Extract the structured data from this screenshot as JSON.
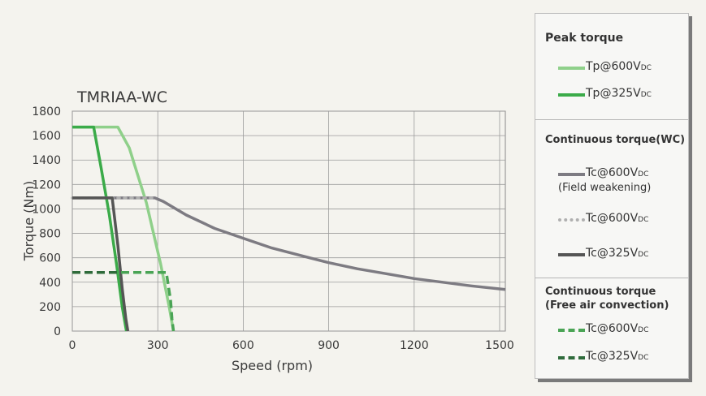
{
  "chart_data": {
    "type": "line",
    "title": "TMRIAA-WC",
    "xlabel": "Speed (rpm)",
    "ylabel": "Torque (Nm)",
    "xlim": [
      0,
      1520
    ],
    "ylim": [
      0,
      1800
    ],
    "xticks": [
      0,
      300,
      600,
      900,
      1200,
      1500
    ],
    "yticks": [
      0,
      200,
      400,
      600,
      800,
      1000,
      1200,
      1400,
      1600,
      1800
    ],
    "grid": true,
    "legend_placement": "right",
    "series": [
      {
        "name": "Tp@600VDC",
        "color": "#8fd08a",
        "style": "solid",
        "x": [
          0,
          160,
          200,
          260,
          310,
          340,
          355
        ],
        "y": [
          1670,
          1670,
          1500,
          1050,
          550,
          200,
          0
        ]
      },
      {
        "name": "Tp@325VDC",
        "color": "#3bab49",
        "style": "solid",
        "x": [
          0,
          75,
          100,
          130,
          155,
          175,
          190
        ],
        "y": [
          1670,
          1670,
          1350,
          950,
          550,
          200,
          0
        ]
      },
      {
        "name": "Tc@600VDC (Field weakening)",
        "color": "#7d7b82",
        "style": "solid",
        "x": [
          0,
          290,
          320,
          400,
          500,
          600,
          700,
          800,
          900,
          1000,
          1100,
          1200,
          1300,
          1400,
          1520
        ],
        "y": [
          1090,
          1090,
          1060,
          950,
          840,
          760,
          680,
          620,
          560,
          510,
          470,
          430,
          400,
          370,
          340
        ]
      },
      {
        "name": "Tc@600VDC",
        "color": "#b0b0b0",
        "style": "dotted",
        "x": [
          0,
          290
        ],
        "y": [
          1090,
          1090
        ]
      },
      {
        "name": "Tc@325VDC",
        "color": "#555555",
        "style": "solid",
        "x": [
          0,
          140,
          160,
          175,
          188,
          195
        ],
        "y": [
          1090,
          1090,
          700,
          350,
          100,
          0
        ]
      },
      {
        "name": "Tc@600VDC",
        "color": "#4aa455",
        "style": "dashed",
        "x": [
          0,
          330,
          345,
          350,
          355
        ],
        "y": [
          480,
          480,
          250,
          100,
          0
        ]
      },
      {
        "name": "Tc@325VDC",
        "color": "#2f6b3b",
        "style": "dashed",
        "x": [
          0,
          170
        ],
        "y": [
          480,
          480
        ]
      }
    ]
  },
  "legend": {
    "peak_title": "Peak torque",
    "cont_wc_title": "Continuous torque(WC)",
    "cont_fa_title_1": "Continuous torque",
    "cont_fa_title_2": "(Free air convection)",
    "field_weakening_note": "(Field weakening)",
    "items": [
      {
        "base": "Tp@600V",
        "sub": "DC",
        "color": "#8fd08a",
        "style": "solid"
      },
      {
        "base": "Tp@325V",
        "sub": "DC",
        "color": "#3bab49",
        "style": "solid"
      },
      {
        "base": "Tc@600V",
        "sub": "DC",
        "color": "#7d7b82",
        "style": "solid"
      },
      {
        "base": "Tc@600V",
        "sub": "DC",
        "color": "#b0b0b0",
        "style": "dotted"
      },
      {
        "base": "Tc@325V",
        "sub": "DC",
        "color": "#555555",
        "style": "solid"
      },
      {
        "base": "Tc@600V",
        "sub": "DC",
        "color": "#4aa455",
        "style": "dashed"
      },
      {
        "base": "Tc@325V",
        "sub": "DC",
        "color": "#2f6b3b",
        "style": "dashed"
      }
    ]
  }
}
